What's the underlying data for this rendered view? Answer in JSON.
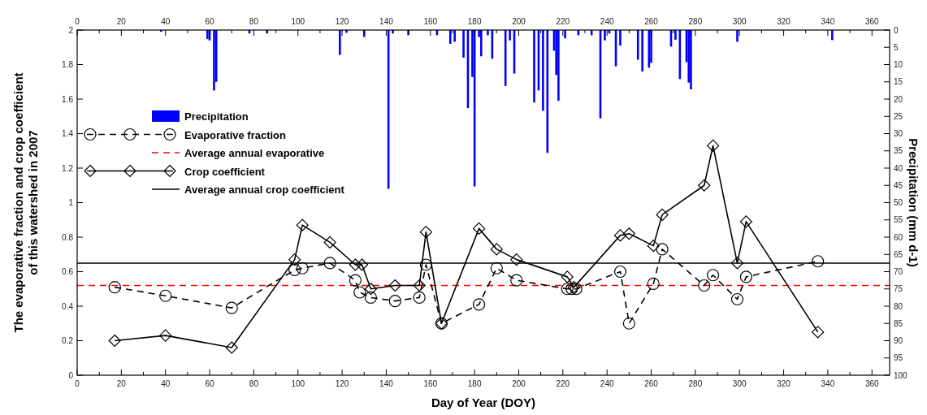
{
  "chart_data": {
    "type": "line",
    "xlabel": "Day of Year (DOY)",
    "ylabel": "The evaporative fraction and crop coefficient\nof this watershed in 2007",
    "y2label": "Precipitation (mm d-1)",
    "xlim": [
      0,
      368
    ],
    "ylim": [
      0,
      2
    ],
    "y2lim": [
      100,
      0
    ],
    "x2lim": [
      0,
      368
    ],
    "xticks": [
      0,
      {
        "value": 10,
        "label": null
      },
      20,
      {
        "value": 30,
        "label": null
      },
      40,
      {
        "value": 50,
        "label": null
      },
      60,
      {
        "value": 70,
        "label": null
      },
      80,
      {
        "value": 90,
        "label": null
      },
      100,
      {
        "value": 110,
        "label": null
      },
      120,
      {
        "value": 130,
        "label": null
      },
      140,
      {
        "value": 150,
        "label": null
      },
      160,
      {
        "value": 170,
        "label": null
      },
      180,
      {
        "value": 190,
        "label": null
      },
      200,
      {
        "value": 210,
        "label": null
      },
      220,
      {
        "value": 230,
        "label": null
      },
      240,
      {
        "value": 250,
        "label": null
      },
      260,
      {
        "value": 270,
        "label": null
      },
      280,
      {
        "value": 290,
        "label": null
      },
      300,
      {
        "value": 310,
        "label": null
      },
      320,
      {
        "value": 330,
        "label": null
      },
      340,
      {
        "value": 350,
        "label": null
      },
      360
    ],
    "x2ticks": [
      0,
      {
        "value": 10,
        "label": null
      },
      20,
      {
        "value": 30,
        "label": null
      },
      40,
      {
        "value": 50,
        "label": null
      },
      60,
      {
        "value": 70,
        "label": null
      },
      80,
      {
        "value": 90,
        "label": null
      },
      100,
      {
        "value": 110,
        "label": null
      },
      120,
      {
        "value": 130,
        "label": null
      },
      140,
      {
        "value": 150,
        "label": null
      },
      160,
      {
        "value": 170,
        "label": null
      },
      180,
      {
        "value": 190,
        "label": null
      },
      200,
      {
        "value": 210,
        "label": null
      },
      220,
      {
        "value": 230,
        "label": null
      },
      240,
      {
        "value": 250,
        "label": null
      },
      260,
      {
        "value": 270,
        "label": null
      },
      280,
      {
        "value": 290,
        "label": null
      },
      300,
      {
        "value": 310,
        "label": null
      },
      320,
      {
        "value": 330,
        "label": null
      },
      340,
      {
        "value": 350,
        "label": null
      },
      360
    ],
    "yticks": [
      0,
      0.2,
      0.4,
      0.6,
      0.8,
      1,
      1.2,
      1.4,
      1.6,
      1.8,
      2
    ],
    "y2ticks": [
      0,
      5,
      10,
      15,
      20,
      25,
      30,
      35,
      40,
      45,
      50,
      55,
      60,
      65,
      70,
      75,
      80,
      85,
      90,
      95,
      100
    ],
    "legend": "left",
    "grid": false,
    "series": [
      {
        "name": "Precipitation",
        "type": "bar",
        "axis": "y2",
        "color": "#0000ff",
        "x": [
          38,
          59,
          60,
          62,
          63,
          78,
          86,
          119,
          122,
          130,
          141,
          143,
          150,
          163,
          169,
          171,
          175,
          177,
          179,
          180,
          182,
          183,
          186,
          188,
          194,
          196,
          198,
          207,
          209,
          211,
          213,
          216,
          217,
          218,
          221,
          227,
          233,
          237,
          239,
          241,
          244,
          246,
          254,
          256,
          259,
          260,
          269,
          271,
          273,
          276,
          277,
          278,
          299,
          342
        ],
        "values": [
          0.5,
          2.6,
          3,
          17.5,
          15,
          1,
          1,
          7.2,
          0.8,
          2,
          46,
          1,
          1.5,
          1.5,
          4,
          3.4,
          8,
          22.6,
          13.6,
          45.3,
          2,
          7.6,
          1.5,
          8.3,
          16.2,
          3,
          12.6,
          21,
          17.5,
          23.4,
          35.6,
          6,
          13,
          20.5,
          2.4,
          1.5,
          1.5,
          25.6,
          3,
          1,
          10.5,
          4.5,
          8.6,
          12,
          10.9,
          9.5,
          4.8,
          2.8,
          14.2,
          9.3,
          15.2,
          17.2,
          3.4,
          2.9
        ]
      },
      {
        "name": "Evaporative fraction",
        "color": "#000000",
        "marker": "circle",
        "line_style": "dashed",
        "x": [
          17,
          40,
          70,
          98.5,
          102,
          114.5,
          126,
          128,
          133,
          144,
          155,
          158,
          165,
          182,
          190,
          199,
          222,
          224,
          226,
          246,
          250,
          261,
          265,
          284,
          288,
          299,
          303,
          335.5
        ],
        "values": [
          0.51,
          0.46,
          0.39,
          0.61,
          0.62,
          0.65,
          0.55,
          0.48,
          0.45,
          0.43,
          0.45,
          0.64,
          0.3,
          0.41,
          0.62,
          0.55,
          0.5,
          0.5,
          0.5,
          0.6,
          0.3,
          0.53,
          0.73,
          0.52,
          0.58,
          0.44,
          0.57,
          0.66
        ]
      },
      {
        "name": "Crop coefficient",
        "color": "#000000",
        "marker": "diamond",
        "line_style": "solid",
        "x": [
          17,
          40,
          70,
          98.5,
          102,
          114.5,
          126,
          129,
          133,
          144,
          155,
          158,
          165,
          182,
          190,
          199,
          222,
          225,
          246,
          250,
          261,
          265,
          284,
          288,
          299,
          303,
          335.5
        ],
        "values": [
          0.2,
          0.23,
          0.16,
          0.67,
          0.87,
          0.77,
          0.64,
          0.64,
          0.5,
          0.52,
          0.52,
          0.83,
          0.3,
          0.85,
          0.73,
          0.67,
          0.57,
          0.51,
          0.81,
          0.82,
          0.75,
          0.93,
          1.1,
          1.33,
          0.65,
          0.89,
          0.25
        ]
      }
    ],
    "ref_lines": [
      {
        "axis": "y",
        "value": 0.52,
        "label": "Average annual evaporative",
        "color": "#ff0000",
        "line_style": "dashed"
      },
      {
        "axis": "y",
        "value": 0.65,
        "label": "Average annual crop coefficient",
        "color": "#000000",
        "line_style": "solid"
      }
    ]
  }
}
